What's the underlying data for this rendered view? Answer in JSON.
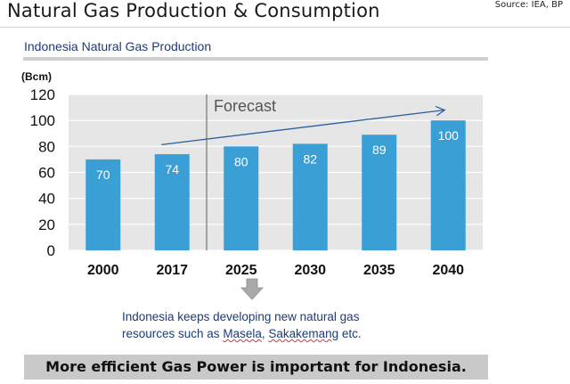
{
  "header": {
    "title": "Natural Gas Production & Consumption",
    "source": "Source: IEA, BP"
  },
  "chart_data": {
    "type": "bar",
    "title": "Indonesia Natural Gas Production",
    "ylabel": "(Bcm)",
    "xlabel": "",
    "categories": [
      "2000",
      "2017",
      "2025",
      "2030",
      "2035",
      "2040"
    ],
    "values": [
      70,
      74,
      80,
      82,
      89,
      100
    ],
    "data_labels": [
      "70",
      "74",
      "80",
      "82",
      "89",
      "100"
    ],
    "ylim": [
      0,
      120
    ],
    "yticks": [
      0,
      20,
      40,
      60,
      80,
      100,
      120
    ],
    "ytick_labels": [
      "0",
      "20",
      "40",
      "60",
      "80",
      "100",
      "120"
    ],
    "grid": true,
    "bar_color": "#3a9fd5",
    "annotations": {
      "forecast_label": "Forecast",
      "forecast_divider_after_category": "2017",
      "trend_arrow": {
        "from_category": "2017",
        "from_value": 80,
        "to_category": "2040",
        "to_value": 108
      }
    }
  },
  "note": {
    "line1": "Indonesia keeps developing new natural gas",
    "line2_prefix": "resources such as ",
    "masela": "Masela",
    "comma": ", ",
    "sakakemang": "Sakakemang",
    "suffix": " etc."
  },
  "banner": {
    "text": "More efficient Gas Power is important for Indonesia.",
    "background": "#c9c9c9"
  },
  "colors": {
    "accent": "#1f3b73",
    "bar": "#3a9fd5",
    "arrow": "#2f5f9e"
  }
}
